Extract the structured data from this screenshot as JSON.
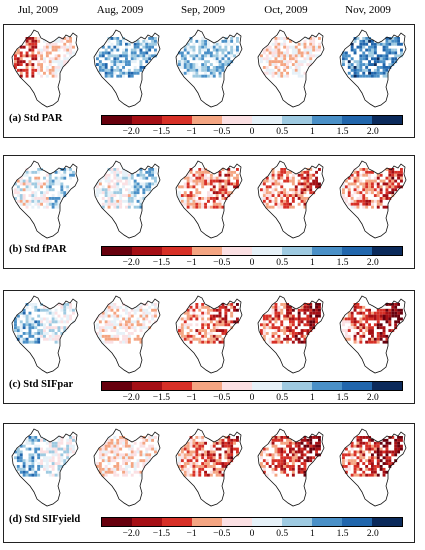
{
  "months": [
    "Jul, 2009",
    "Aug, 2009",
    "Sep, 2009",
    "Oct, 2009",
    "Nov, 2009"
  ],
  "colorbar": {
    "ticks": [
      "−2.0",
      "−1.5",
      "−1",
      "−0.5",
      "0",
      "0.5",
      "1",
      "1.5",
      "2.0"
    ],
    "colors": [
      "#67000d",
      "#a50f15",
      "#d73027",
      "#f4a582",
      "#fbe0e3",
      "#e6f1f8",
      "#9ecae1",
      "#4a90c7",
      "#2166ac",
      "#0b2a5b"
    ]
  },
  "chart_data": [
    {
      "type": "heatmap",
      "title": "(a) Std PAR",
      "columns": [
        "Jul, 2009",
        "Aug, 2009",
        "Sep, 2009",
        "Oct, 2009",
        "Nov, 2009"
      ],
      "approx_mean_anomaly": [
        -1.0,
        1.0,
        0.8,
        -0.3,
        1.4
      ]
    },
    {
      "type": "heatmap",
      "title": "(b) Std fPAR",
      "columns": [
        "Jul, 2009",
        "Aug, 2009",
        "Sep, 2009",
        "Oct, 2009",
        "Nov, 2009"
      ],
      "approx_mean_anomaly": [
        0.3,
        0.2,
        -0.9,
        -0.9,
        -1.0
      ]
    },
    {
      "type": "heatmap",
      "title": "(c) Std SIFpar",
      "columns": [
        "Jul, 2009",
        "Aug, 2009",
        "Sep, 2009",
        "Oct, 2009",
        "Nov, 2009"
      ],
      "approx_mean_anomaly": [
        0.6,
        -0.2,
        -1.0,
        -1.3,
        -1.4
      ]
    },
    {
      "type": "heatmap",
      "title": "(d) Std SIFyield",
      "columns": [
        "Jul, 2009",
        "Aug, 2009",
        "Sep, 2009",
        "Oct, 2009",
        "Nov, 2009"
      ],
      "approx_mean_anomaly": [
        0.6,
        -0.3,
        -1.0,
        -1.3,
        -1.4
      ]
    }
  ]
}
